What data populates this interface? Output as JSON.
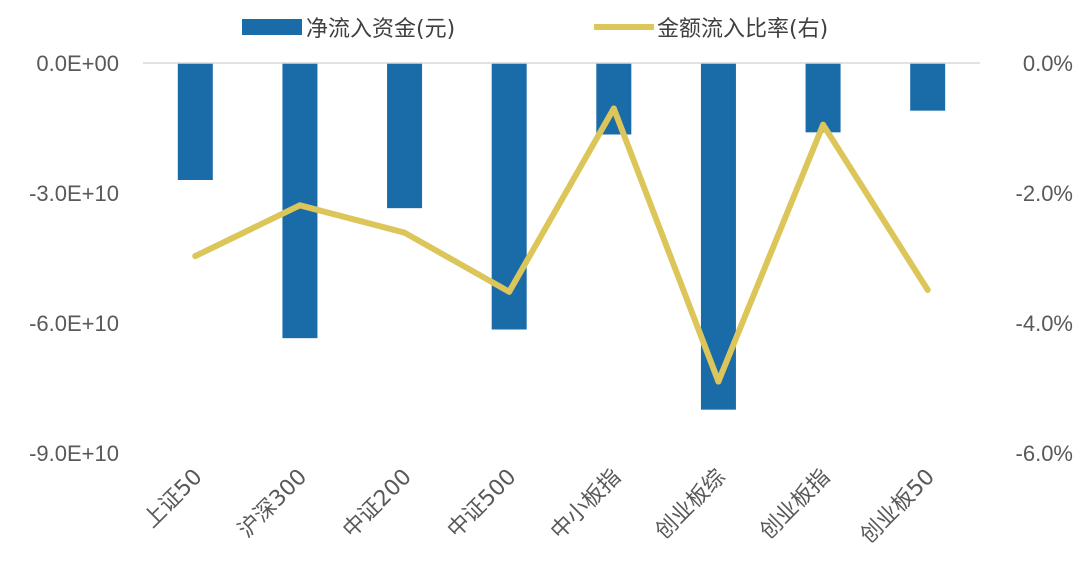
{
  "chart_data": {
    "type": "bar+line",
    "title": "",
    "xlabel": "",
    "ylabel": "",
    "y2label": "",
    "categories": [
      "上证50",
      "沪深300",
      "中证200",
      "中证500",
      "中小板指",
      "创业板综",
      "创业板指",
      "创业板50"
    ],
    "series": [
      {
        "name": "净流入资金(元)",
        "kind": "bar",
        "axis": "left",
        "color": "#1a6ca8",
        "values": [
          -27000000000,
          -63500000000,
          -33500000000,
          -61500000000,
          -16500000000,
          -80000000000,
          -16000000000,
          -11000000000
        ]
      },
      {
        "name": "金额流入比率(右)",
        "kind": "line",
        "axis": "right",
        "color": "#dcc65a",
        "values": [
          -0.0297,
          -0.0219,
          -0.0261,
          -0.0352,
          -0.007,
          -0.049,
          -0.0095,
          -0.0349
        ]
      }
    ],
    "ylim": [
      -90000000000,
      0
    ],
    "y2lim": [
      -0.06,
      0
    ],
    "yticks": [
      "0.0E+00",
      "-3.0E+10",
      "-6.0E+10",
      "-9.0E+10"
    ],
    "y2ticks": [
      "0.0%",
      "-2.0%",
      "-4.0%",
      "-6.0%"
    ],
    "legend": "top",
    "grid": false
  }
}
